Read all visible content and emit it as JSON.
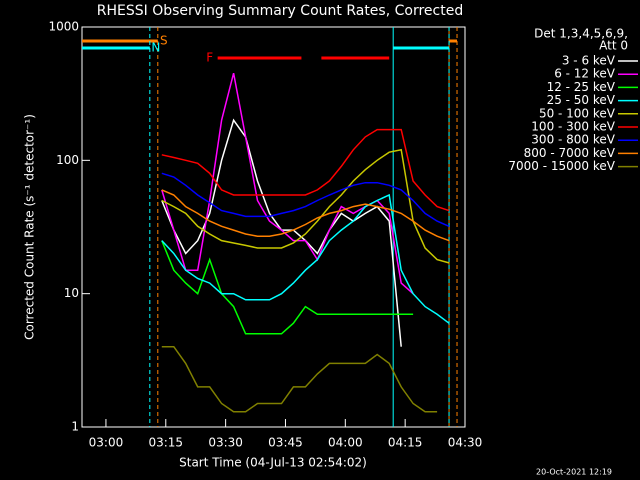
{
  "chart_data": {
    "type": "line",
    "title": "RHESSI Observing Summary Count Rates, Corrected",
    "xlabel": "Start Time (04-Jul-13 02:54:02)",
    "ylabel": "Corrected Count Rate (s⁻¹ detector⁻¹)",
    "legend_title": [
      "Det 1,3,4,5,6,9,",
      "Att 0"
    ],
    "footer": "20-Oct-2021 12:19",
    "log_y": true,
    "xlim": [
      "02:54",
      "04:30"
    ],
    "xticks": [
      "03:00",
      "03:15",
      "03:30",
      "03:45",
      "04:00",
      "04:15",
      "04:30"
    ],
    "ylim": [
      1,
      1000
    ],
    "yticks": [
      1,
      10,
      100,
      1000
    ],
    "x": [
      "03:14",
      "03:17",
      "03:20",
      "03:23",
      "03:26",
      "03:29",
      "03:32",
      "03:35",
      "03:38",
      "03:41",
      "03:44",
      "03:47",
      "03:50",
      "03:53",
      "03:56",
      "03:59",
      "04:02",
      "04:05",
      "04:08",
      "04:11",
      "04:14",
      "04:17",
      "04:20",
      "04:23",
      "04:26"
    ],
    "series": [
      {
        "name": "3 - 6 keV",
        "color": "#ffffff",
        "values": [
          50,
          30,
          20,
          25,
          40,
          100,
          200,
          150,
          70,
          40,
          30,
          30,
          25,
          20,
          30,
          40,
          35,
          40,
          45,
          35,
          4,
          null,
          null,
          null,
          null
        ]
      },
      {
        "name": "6 - 12 keV",
        "color": "#ff00ff",
        "values": [
          60,
          30,
          15,
          15,
          50,
          200,
          450,
          150,
          50,
          35,
          30,
          25,
          25,
          18,
          30,
          45,
          40,
          45,
          50,
          40,
          12,
          10,
          null,
          null,
          null
        ]
      },
      {
        "name": "12 - 25 keV",
        "color": "#00ff00",
        "values": [
          25,
          15,
          12,
          10,
          18,
          10,
          8,
          5,
          5,
          5,
          5,
          6,
          8,
          7,
          7,
          7,
          7,
          7,
          7,
          7,
          7,
          7,
          null,
          null,
          null
        ]
      },
      {
        "name": "25 - 50 keV",
        "color": "#00ffff",
        "values": [
          25,
          20,
          15,
          13,
          12,
          10,
          10,
          9,
          9,
          9,
          10,
          12,
          15,
          18,
          25,
          30,
          35,
          45,
          50,
          55,
          15,
          10,
          8,
          7,
          6
        ]
      },
      {
        "name": "50 - 100 keV",
        "color": "#c8c800",
        "values": [
          50,
          45,
          40,
          32,
          28,
          25,
          24,
          23,
          22,
          22,
          22,
          24,
          28,
          35,
          45,
          55,
          70,
          85,
          100,
          115,
          120,
          35,
          22,
          18,
          17
        ]
      },
      {
        "name": "100 - 300 keV",
        "color": "#ff0000",
        "values": [
          110,
          105,
          100,
          95,
          80,
          60,
          55,
          55,
          55,
          55,
          55,
          55,
          55,
          60,
          70,
          90,
          120,
          150,
          170,
          170,
          170,
          70,
          55,
          45,
          42
        ]
      },
      {
        "name": "300 - 800 keV",
        "color": "#0000ff",
        "values": [
          80,
          75,
          65,
          55,
          48,
          42,
          40,
          38,
          38,
          38,
          40,
          42,
          45,
          50,
          55,
          60,
          65,
          68,
          68,
          65,
          60,
          50,
          40,
          35,
          32
        ]
      },
      {
        "name": "800 - 7000 keV",
        "color": "#ff8000",
        "values": [
          60,
          55,
          45,
          40,
          35,
          32,
          30,
          28,
          27,
          27,
          28,
          30,
          33,
          37,
          40,
          42,
          45,
          47,
          45,
          43,
          40,
          35,
          30,
          27,
          25
        ]
      },
      {
        "name": "7000 - 15000 keV",
        "color": "#808000",
        "values": [
          4,
          4,
          3,
          2,
          2,
          1.5,
          1.3,
          1.3,
          1.5,
          1.5,
          1.5,
          2,
          2,
          2.5,
          3,
          3,
          3,
          3,
          3.5,
          3,
          2,
          1.5,
          1.3,
          1.3,
          null
        ]
      }
    ],
    "flags": [
      {
        "label": "S",
        "color": "#ff8000",
        "intervals": [
          [
            "02:54",
            "03:13"
          ],
          [
            "04:26",
            "04:28"
          ]
        ]
      },
      {
        "label": "N",
        "color": "#00ffff",
        "intervals": [
          [
            "02:54",
            "03:11"
          ],
          [
            "04:12",
            "04:26"
          ]
        ]
      },
      {
        "label": "F",
        "color": "#ff0000",
        "intervals": [
          [
            "03:28",
            "03:49"
          ],
          [
            "03:54",
            "04:11"
          ]
        ]
      }
    ]
  }
}
